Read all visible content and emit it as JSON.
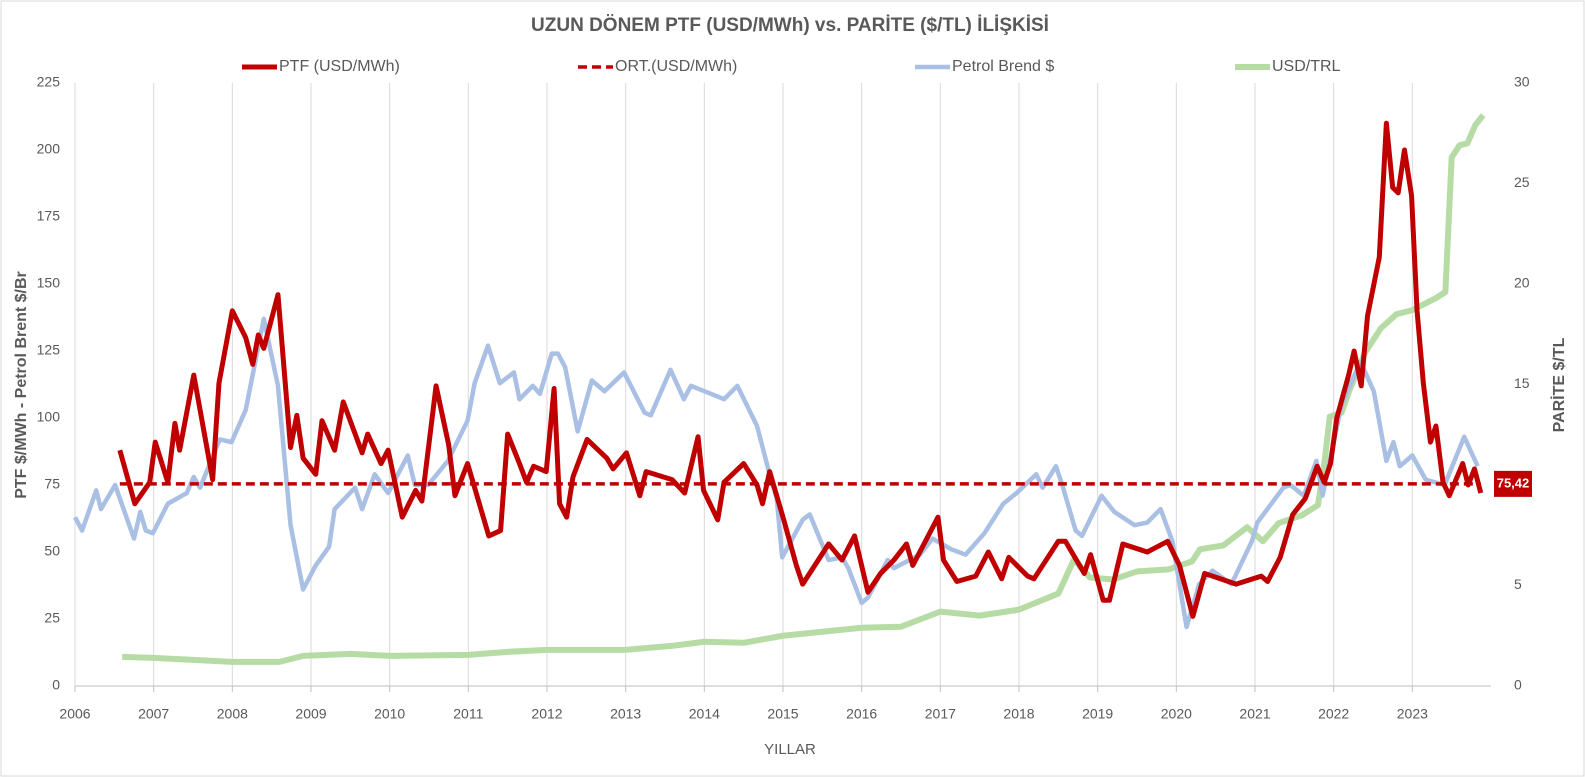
{
  "chart_data": {
    "type": "line",
    "title": "UZUN DÖNEM PTF (USD/MWh) vs. PARİTE ($/TL) İLİŞKİSİ",
    "xlabel": "YILLAR",
    "ylabel": "PTF $/MWh - Petrol Brent $/Br",
    "y2label": "PARİTE $/TL",
    "xlim": [
      2006,
      2024
    ],
    "xticks": [
      2006,
      2007,
      2008,
      2009,
      2010,
      2011,
      2012,
      2013,
      2014,
      2015,
      2016,
      2017,
      2018,
      2019,
      2020,
      2021,
      2022,
      2023
    ],
    "ylim": [
      0,
      225
    ],
    "yticks": [
      0,
      25,
      50,
      75,
      100,
      125,
      150,
      175,
      200,
      225
    ],
    "y2lim": [
      0,
      30
    ],
    "y2ticks": [
      0,
      5,
      10,
      15,
      20,
      25,
      30
    ],
    "xgrid": true,
    "legend": "top",
    "series": [
      {
        "name": "PTF (USD/MWh)",
        "color": "#c00000",
        "style": "solid",
        "width": 5,
        "x": [
          2006.57,
          2006.76,
          2006.95,
          2007.02,
          2007.18,
          2007.27,
          2007.33,
          2007.51,
          2007.75,
          2007.83,
          2008.0,
          2008.17,
          2008.26,
          2008.33,
          2008.4,
          2008.58,
          2008.74,
          2008.82,
          2008.9,
          2009.06,
          2009.14,
          2009.3,
          2009.41,
          2009.65,
          2009.72,
          2009.89,
          2009.98,
          2010.16,
          2010.33,
          2010.41,
          2010.59,
          2010.75,
          2010.83,
          2010.99,
          2011.26,
          2011.41,
          2011.5,
          2011.65,
          2011.74,
          2011.83,
          2011.99,
          2012.09,
          2012.16,
          2012.25,
          2012.33,
          2012.51,
          2012.76,
          2012.84,
          2013.01,
          2013.18,
          2013.26,
          2013.59,
          2013.75,
          2013.92,
          2013.99,
          2014.17,
          2014.25,
          2014.5,
          2014.67,
          2014.74,
          2014.83,
          2015.0,
          2015.17,
          2015.25,
          2015.58,
          2015.75,
          2015.91,
          2016.08,
          2016.24,
          2016.41,
          2016.57,
          2016.65,
          2016.97,
          2017.04,
          2017.21,
          2017.45,
          2017.61,
          2017.78,
          2017.87,
          2018.11,
          2018.19,
          2018.5,
          2018.59,
          2018.83,
          2018.91,
          2019.07,
          2019.15,
          2019.32,
          2019.63,
          2019.89,
          2020.04,
          2020.21,
          2020.36,
          2020.76,
          2021.08,
          2021.16,
          2021.32,
          2021.48,
          2021.64,
          2021.79,
          2021.88,
          2021.96,
          2022.04,
          2022.19,
          2022.26,
          2022.35,
          2022.43,
          2022.58,
          2022.67,
          2022.75,
          2022.82,
          2022.9,
          2022.99,
          2023.06,
          2023.14,
          2023.23,
          2023.3,
          2023.39,
          2023.47,
          2023.64,
          2023.71,
          2023.79,
          2023.87
        ],
        "values": [
          88,
          68,
          76,
          91,
          76,
          98,
          88,
          116,
          77,
          113,
          140,
          130,
          120,
          131,
          126,
          146,
          89,
          101,
          85,
          79,
          99,
          88,
          106,
          87,
          94,
          83,
          88,
          63,
          73,
          69,
          112,
          90,
          71,
          83,
          56,
          58,
          94,
          83,
          76,
          82,
          80,
          111,
          68,
          63,
          78,
          92,
          85,
          81,
          87,
          71,
          80,
          77,
          72,
          93,
          73,
          62,
          76,
          83,
          75,
          68,
          80,
          63,
          45,
          38,
          53,
          47,
          56,
          35,
          42,
          47,
          53,
          45,
          63,
          47,
          39,
          41,
          50,
          40,
          48,
          41,
          40,
          54,
          54,
          42,
          49,
          32,
          32,
          53,
          50,
          54,
          45,
          26,
          42,
          38,
          41,
          39,
          48,
          64,
          70,
          82,
          76,
          83,
          100,
          116,
          125,
          112,
          138,
          160,
          210,
          186,
          184,
          200,
          183,
          140,
          113,
          91,
          97,
          76,
          71,
          83,
          75,
          81,
          72
        ]
      },
      {
        "name": "ORT.(USD/MWh)",
        "color": "#c00000",
        "style": "dashed",
        "width": 3.5,
        "x": [
          2006.57,
          2023.87
        ],
        "values": [
          75.42,
          75.42
        ],
        "value_labels": [
          null,
          "75,42"
        ]
      },
      {
        "name": "Petrol Brend $",
        "color": "#a9bfe3",
        "style": "solid",
        "width": 4.5,
        "x": [
          2006.0,
          2006.09,
          2006.27,
          2006.33,
          2006.51,
          2006.75,
          2006.83,
          2006.9,
          2006.99,
          2007.18,
          2007.42,
          2007.51,
          2007.59,
          2007.84,
          2007.99,
          2008.17,
          2008.4,
          2008.58,
          2008.74,
          2008.9,
          2009.06,
          2009.23,
          2009.3,
          2009.56,
          2009.65,
          2009.81,
          2009.98,
          2010.23,
          2010.32,
          2010.49,
          2010.74,
          2010.99,
          2011.08,
          2011.25,
          2011.4,
          2011.58,
          2011.65,
          2011.82,
          2011.91,
          2012.06,
          2012.14,
          2012.23,
          2012.39,
          2012.57,
          2012.73,
          2012.98,
          2013.24,
          2013.32,
          2013.57,
          2013.74,
          2013.83,
          2014.17,
          2014.25,
          2014.42,
          2014.67,
          2014.83,
          2014.92,
          2014.99,
          2015.25,
          2015.34,
          2015.58,
          2015.75,
          2015.83,
          2016.0,
          2016.08,
          2016.33,
          2016.41,
          2016.74,
          2016.9,
          2017.14,
          2017.32,
          2017.56,
          2017.8,
          2017.97,
          2018.22,
          2018.3,
          2018.47,
          2018.55,
          2018.72,
          2018.8,
          2019.05,
          2019.21,
          2019.47,
          2019.63,
          2019.8,
          2019.95,
          2020.13,
          2020.29,
          2020.46,
          2020.7,
          2020.96,
          2021.03,
          2021.36,
          2021.45,
          2021.62,
          2021.78,
          2021.86,
          2022.1,
          2022.34,
          2022.51,
          2022.67,
          2022.76,
          2022.84,
          2023.0,
          2023.17,
          2023.41,
          2023.66,
          2023.83
        ],
        "values": [
          63,
          58,
          73,
          66,
          75,
          55,
          65,
          58,
          57,
          68,
          72,
          78,
          74,
          92,
          91,
          103,
          137,
          112,
          60,
          36,
          45,
          52,
          66,
          74,
          66,
          79,
          72,
          86,
          75,
          75,
          84,
          99,
          113,
          127,
          113,
          117,
          107,
          112,
          109,
          124,
          124,
          119,
          95,
          114,
          110,
          117,
          102,
          101,
          118,
          107,
          112,
          108,
          107,
          112,
          97,
          79,
          70,
          48,
          62,
          64,
          47,
          48,
          44,
          31,
          33,
          47,
          44,
          49,
          55,
          51,
          49,
          57,
          68,
          72,
          79,
          74,
          82,
          75,
          58,
          56,
          71,
          65,
          60,
          61,
          66,
          54,
          22,
          38,
          43,
          38,
          54,
          61,
          74,
          75,
          71,
          84,
          71,
          105,
          121,
          110,
          84,
          91,
          82,
          86,
          77,
          75,
          93,
          82
        ]
      },
      {
        "name": "USD/TRL",
        "color": "#b6dba4",
        "style": "solid",
        "width": 6,
        "axis": "y2",
        "x": [
          2006.6,
          2007.0,
          2008.0,
          2008.6,
          2008.9,
          2009.5,
          2010.0,
          2011.0,
          2011.5,
          2012.0,
          2013.0,
          2013.6,
          2014.0,
          2014.5,
          2015.0,
          2015.5,
          2016.0,
          2016.5,
          2017.0,
          2017.5,
          2018.0,
          2018.5,
          2018.7,
          2018.9,
          2019.2,
          2019.5,
          2019.9,
          2020.2,
          2020.3,
          2020.6,
          2020.9,
          2021.1,
          2021.3,
          2021.6,
          2021.8,
          2021.88,
          2021.95,
          2022.1,
          2022.2,
          2022.4,
          2022.6,
          2022.8,
          2023.0,
          2023.3,
          2023.42,
          2023.5,
          2023.6,
          2023.7,
          2023.8,
          2023.9
        ],
        "values": [
          1.45,
          1.4,
          1.2,
          1.2,
          1.5,
          1.6,
          1.5,
          1.55,
          1.7,
          1.8,
          1.8,
          2.0,
          2.2,
          2.15,
          2.5,
          2.7,
          2.9,
          2.95,
          3.7,
          3.5,
          3.8,
          4.6,
          6.3,
          5.4,
          5.3,
          5.7,
          5.8,
          6.2,
          6.8,
          7.0,
          7.9,
          7.2,
          8.1,
          8.5,
          9.0,
          11.0,
          13.4,
          13.6,
          14.7,
          16.6,
          17.8,
          18.5,
          18.7,
          19.3,
          19.6,
          26.3,
          26.9,
          27.0,
          27.9,
          28.4
        ]
      }
    ]
  }
}
